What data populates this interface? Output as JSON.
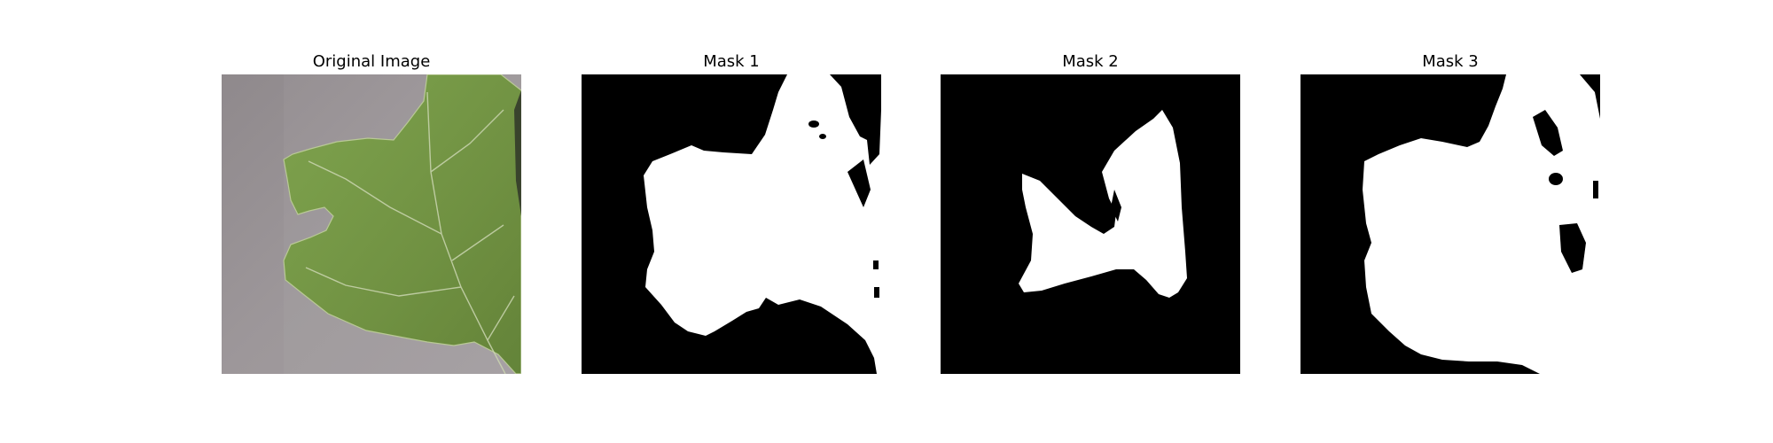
{
  "panels": [
    {
      "title": "Original Image",
      "kind": "photo"
    },
    {
      "title": "Mask 1",
      "kind": "mask"
    },
    {
      "title": "Mask 2",
      "kind": "mask"
    },
    {
      "title": "Mask 3",
      "kind": "mask"
    }
  ],
  "colors": {
    "mask_background": "#000000",
    "mask_foreground": "#ffffff",
    "photo_background": "#9a9497",
    "leaf_fill": "#6f913d",
    "leaf_vein": "#c9d4ae"
  }
}
